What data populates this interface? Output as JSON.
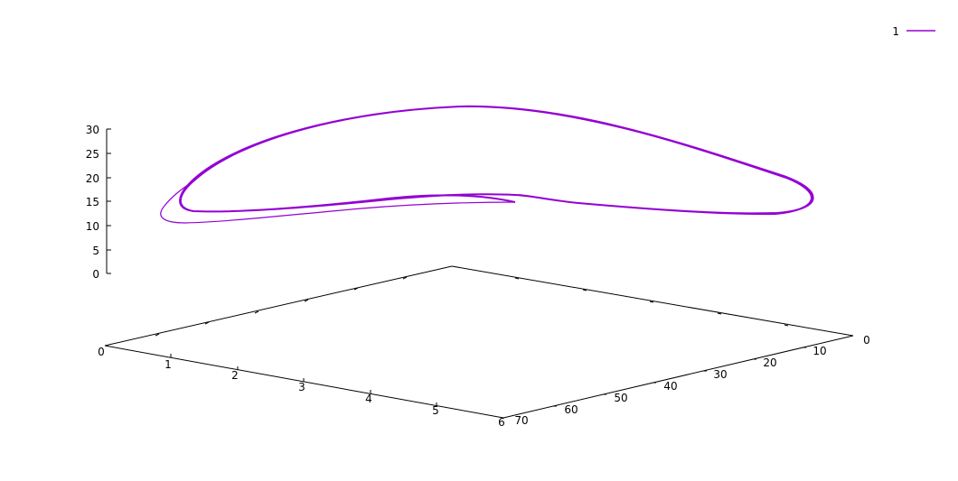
{
  "chart_data": {
    "type": "line",
    "title": "",
    "projection": "3d",
    "xaxis": {
      "ticks": [
        "0",
        "1",
        "2",
        "3",
        "4",
        "5",
        "6"
      ],
      "range": [
        0,
        6
      ]
    },
    "yaxis": {
      "ticks": [
        "0",
        "10",
        "20",
        "30",
        "40",
        "50",
        "60",
        "70"
      ],
      "range": [
        0,
        70
      ]
    },
    "zaxis": {
      "ticks": [
        "0",
        "5",
        "10",
        "15",
        "20",
        "25",
        "30"
      ],
      "range": [
        0,
        30
      ]
    },
    "legend": {
      "placement": "top-right",
      "entries": [
        {
          "name": "1",
          "color": "#9400d3"
        }
      ]
    },
    "series": [
      {
        "name": "1",
        "color": "#9400d3",
        "shape": "closed limit cycle with inward-spiralling transient"
      }
    ],
    "grid": false
  }
}
